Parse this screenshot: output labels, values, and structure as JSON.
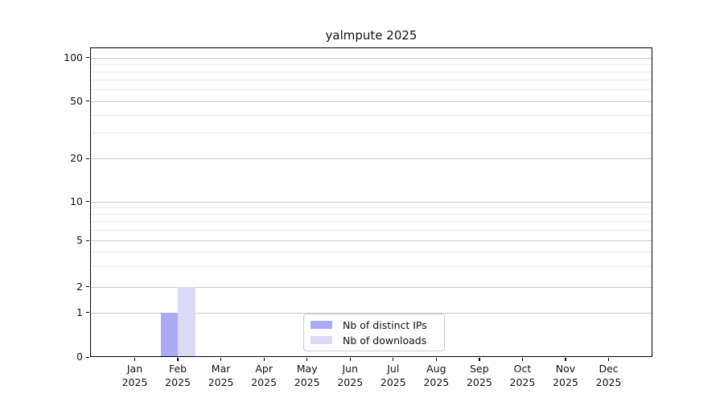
{
  "chart_data": {
    "type": "bar",
    "title": "yalmpute 2025",
    "categories": [
      "Jan 2025",
      "Feb 2025",
      "Mar 2025",
      "Apr 2025",
      "May 2025",
      "Jun 2025",
      "Jul 2025",
      "Aug 2025",
      "Sep 2025",
      "Oct 2025",
      "Nov 2025",
      "Dec 2025"
    ],
    "series": [
      {
        "name": "Nb of distinct IPs",
        "color": "#aaaaf8",
        "values": [
          0,
          1,
          0,
          0,
          0,
          0,
          0,
          0,
          0,
          0,
          0,
          0
        ]
      },
      {
        "name": "Nb of downloads",
        "color": "#dbdbf8",
        "values": [
          0,
          2,
          0,
          0,
          0,
          0,
          0,
          0,
          0,
          0,
          0,
          0
        ]
      }
    ],
    "ylabel": "",
    "xlabel": "",
    "y_ticks": [
      0,
      1,
      2,
      5,
      10,
      20,
      50,
      100
    ],
    "y_minor_ticks": [
      3,
      4,
      6,
      7,
      8,
      9,
      30,
      40,
      60,
      70,
      80,
      90
    ],
    "yscale": "symlog-like",
    "ylim": [
      0,
      117
    ],
    "grid": true,
    "legend_position": "bottom-center-inside"
  },
  "colors": {
    "bar_ips": "#aaaaf8",
    "bar_downloads": "#dbdbf8",
    "grid_major": "#c9c9c9",
    "grid_minor": "#ececec",
    "axis": "#000000",
    "legend_border": "#cccccc",
    "background": "#ffffff"
  }
}
